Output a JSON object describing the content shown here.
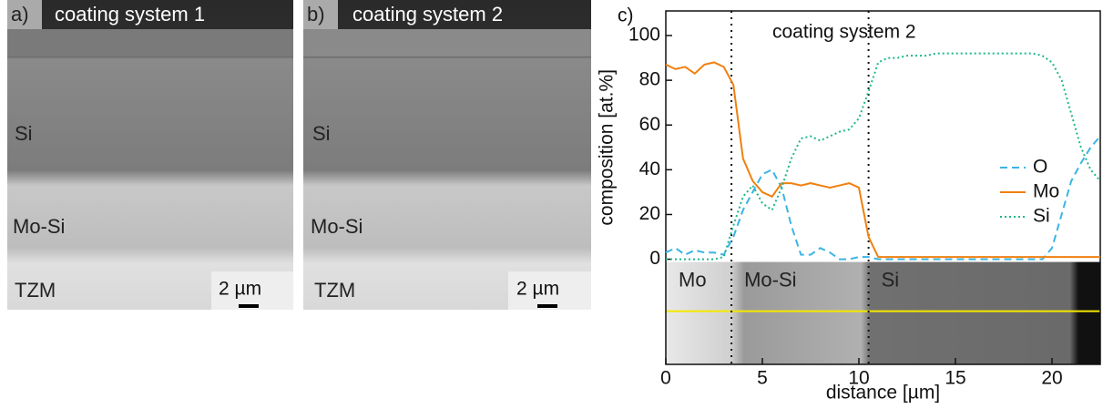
{
  "panels": [
    {
      "label": "a)",
      "title": "coating system 1",
      "layers": [
        "Si",
        "Mo-Si",
        "TZM"
      ],
      "scale": "2 µm"
    },
    {
      "label": "b)",
      "title": "coating system 2",
      "layers": [
        "Si",
        "Mo-Si",
        "TZM"
      ],
      "scale": "2 µm"
    }
  ],
  "chart_data": {
    "type": "line",
    "panel_label": "c)",
    "title": "coating system 2",
    "x_label": "distance [µm]",
    "y_label": "composition [at.%]",
    "xlim": [
      0,
      22.5
    ],
    "ylim": [
      -47,
      111
    ],
    "xticks": [
      0,
      5,
      10,
      15,
      20
    ],
    "yticks": [
      0,
      20,
      40,
      60,
      80,
      100
    ],
    "legend": "right",
    "boundaries": [
      3.4,
      10.5
    ],
    "regions": [
      "Mo",
      "Mo-Si",
      "Si"
    ],
    "x": [
      0,
      0.5,
      1,
      1.5,
      2,
      2.5,
      3,
      3.5,
      4,
      4.5,
      5,
      5.5,
      6,
      6.5,
      7,
      7.5,
      8,
      8.5,
      9,
      9.5,
      10,
      10.5,
      11,
      11.5,
      12,
      12.5,
      13,
      13.5,
      14,
      14.5,
      15,
      15.5,
      16,
      16.5,
      17,
      17.5,
      18,
      18.5,
      19,
      19.5,
      20,
      20.5,
      21,
      21.5,
      22,
      22.5
    ],
    "series": [
      {
        "name": "O",
        "color": "#3cb4e4",
        "dash": "8,5",
        "values": [
          3,
          5,
          2,
          4,
          3,
          3,
          2,
          10,
          22,
          30,
          38,
          40,
          32,
          15,
          2,
          2,
          5,
          3,
          0,
          0,
          1,
          1,
          0,
          0,
          0,
          0,
          0,
          0,
          0,
          0,
          0,
          0,
          0,
          0,
          0,
          0,
          0,
          0,
          0,
          0,
          5,
          20,
          35,
          43,
          50,
          55
        ]
      },
      {
        "name": "Mo",
        "color": "#f08010",
        "dash": "",
        "values": [
          87,
          85,
          86,
          83,
          87,
          88,
          86,
          78,
          45,
          35,
          30,
          28,
          34,
          34,
          33,
          34,
          33,
          32,
          33,
          34,
          32,
          10,
          1,
          1,
          1,
          1,
          1,
          1,
          1,
          1,
          1,
          1,
          1,
          1,
          1,
          1,
          1,
          1,
          1,
          1,
          1,
          1,
          1,
          1,
          1,
          1
        ]
      },
      {
        "name": "Si",
        "color": "#1ab88c",
        "dash": "2,3",
        "values": [
          0,
          0,
          0,
          0,
          0,
          0,
          1,
          15,
          28,
          33,
          25,
          22,
          32,
          45,
          54,
          55,
          53,
          55,
          57,
          58,
          63,
          75,
          88,
          90,
          90,
          91,
          91,
          91,
          92,
          92,
          92,
          92,
          92,
          92,
          92,
          92,
          92,
          92,
          92,
          91,
          88,
          80,
          65,
          50,
          40,
          35
        ]
      }
    ]
  }
}
